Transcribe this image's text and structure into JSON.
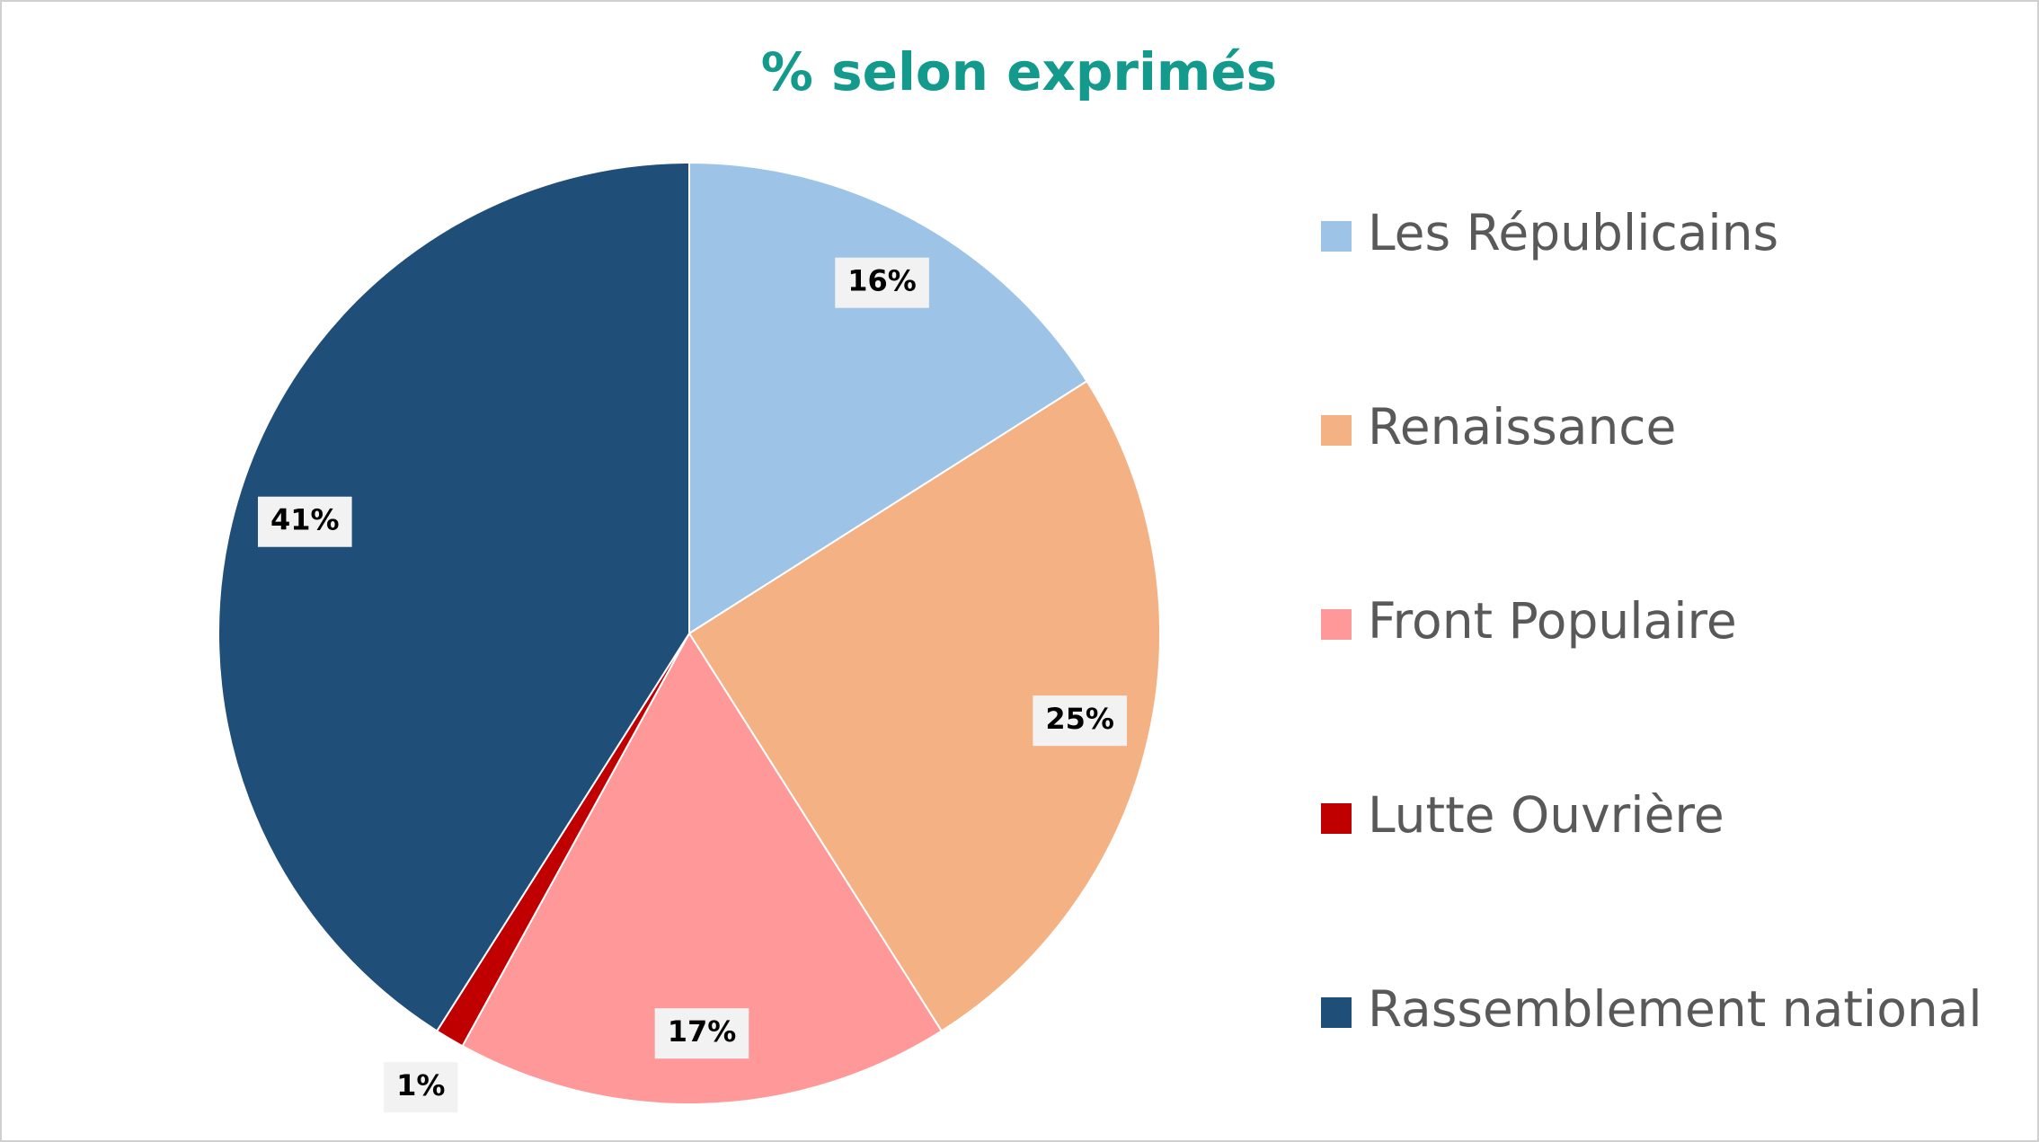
{
  "chart_data": {
    "type": "pie",
    "title": "% selon exprimés",
    "categories": [
      "Les Républicains",
      "Renaissance",
      "Front Populaire",
      "Lutte Ouvrière",
      "Rassemblement national"
    ],
    "values": [
      16,
      25,
      17,
      1,
      41
    ],
    "value_labels": [
      "16%",
      "25%",
      "17%",
      "1%",
      "41%"
    ],
    "colors": [
      "#9DC3E6",
      "#F4B183",
      "#FF9999",
      "#C00000",
      "#1F4E79"
    ],
    "legend": "right"
  }
}
